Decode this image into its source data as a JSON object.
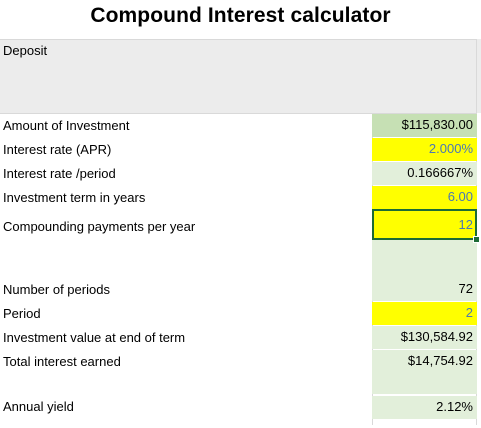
{
  "title": "Compound Interest calculator",
  "deposit_label": "Deposit",
  "rows": [
    {
      "label": "Amount of Investment",
      "value": "$115,830.00"
    },
    {
      "label": "Interest rate (APR)",
      "value": "2.000%"
    },
    {
      "label": "Interest rate /period",
      "value": "0.166667%"
    },
    {
      "label": "Investment term in  years",
      "value": "6.00"
    },
    {
      "label": "Compounding payments per year",
      "value": "12"
    },
    {
      "label": "Number of periods",
      "value": "72"
    },
    {
      "label": "Period",
      "value": "2"
    },
    {
      "label": "Investment value at end of term",
      "value": "$130,584.92"
    },
    {
      "label": "Total interest earned",
      "value": "$14,754.92"
    },
    {
      "label": "Annual yield",
      "value": "2.12%"
    }
  ],
  "colors": {
    "input_yellow": "#ffff00",
    "output_green": "#e2efda",
    "header_green": "#c6e0b4",
    "input_text_blue": "#4a78b5",
    "selection_green": "#1d6b36"
  }
}
